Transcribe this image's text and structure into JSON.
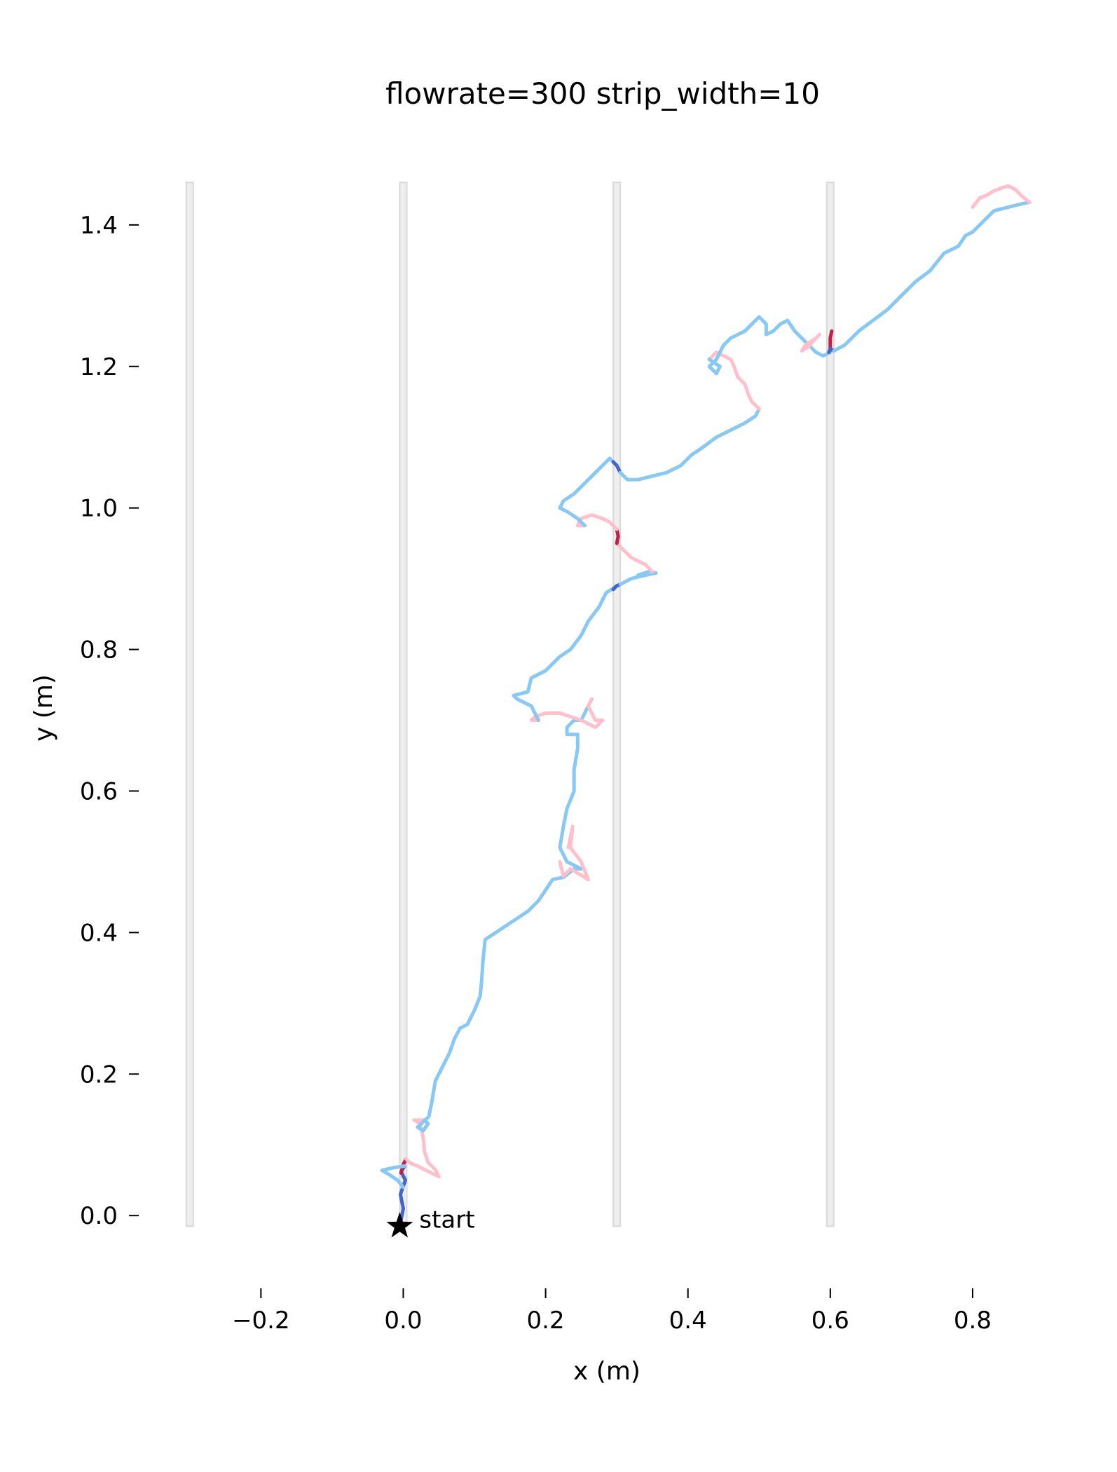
{
  "chart_data": {
    "type": "line",
    "title": "flowrate=300 strip_width=10",
    "xlabel": "x (m)",
    "ylabel": "y (m)",
    "xlim": [
      -0.35,
      0.93
    ],
    "ylim": [
      -0.085,
      1.49
    ],
    "x_ticks": [
      -0.2,
      0.0,
      0.2,
      0.4,
      0.6,
      0.8
    ],
    "x_tick_labels": [
      "−0.2",
      "0.0",
      "0.2",
      "0.4",
      "0.6",
      "0.8"
    ],
    "y_ticks": [
      0.0,
      0.2,
      0.4,
      0.6,
      0.8,
      1.0,
      1.2,
      1.4
    ],
    "y_tick_labels": [
      "0.0",
      "0.2",
      "0.4",
      "0.6",
      "0.8",
      "1.0",
      "1.2",
      "1.4"
    ],
    "grid": false,
    "strips": {
      "x": [
        -0.3,
        0.0,
        0.3,
        0.6
      ],
      "y_range": [
        -0.015,
        1.46
      ],
      "color": "#d9d9d9"
    },
    "start_marker": {
      "x": -0.005,
      "y": -0.015,
      "label": "start",
      "shape": "star",
      "color": "#000000"
    },
    "colors": {
      "off_strip": "#87c8f4",
      "exit_strip": "#ffbfcb",
      "on_strip_enter": "#c0214a",
      "on_strip_exit": "#4466c8"
    },
    "segments": [
      {
        "kind": "on_strip_exit",
        "points": [
          [
            -0.005,
            -0.015
          ],
          [
            0.0,
            0.01
          ],
          [
            -0.004,
            0.03
          ],
          [
            0.003,
            0.05
          ],
          [
            -0.003,
            0.062
          ],
          [
            0.002,
            0.07
          ]
        ]
      },
      {
        "kind": "on_strip_enter",
        "points": [
          [
            -0.003,
            0.06
          ],
          [
            0.0,
            0.072
          ],
          [
            0.004,
            0.08
          ]
        ]
      },
      {
        "kind": "off_strip",
        "points": [
          [
            0.002,
            0.07
          ],
          [
            -0.012,
            0.068
          ],
          [
            -0.03,
            0.064
          ],
          [
            -0.02,
            0.058
          ],
          [
            -0.008,
            0.05
          ],
          [
            0.0,
            0.04
          ]
        ]
      },
      {
        "kind": "exit_strip",
        "points": [
          [
            0.004,
            0.08
          ],
          [
            0.01,
            0.074
          ],
          [
            0.02,
            0.07
          ],
          [
            0.03,
            0.065
          ],
          [
            0.04,
            0.06
          ],
          [
            0.05,
            0.055
          ],
          [
            0.045,
            0.065
          ],
          [
            0.035,
            0.075
          ],
          [
            0.03,
            0.09
          ],
          [
            0.028,
            0.11
          ],
          [
            0.024,
            0.13
          ],
          [
            0.015,
            0.135
          ],
          [
            0.03,
            0.135
          ]
        ]
      },
      {
        "kind": "off_strip",
        "points": [
          [
            0.03,
            0.135
          ],
          [
            0.035,
            0.13
          ],
          [
            0.028,
            0.12
          ],
          [
            0.02,
            0.125
          ],
          [
            0.036,
            0.14
          ],
          [
            0.04,
            0.16
          ],
          [
            0.045,
            0.19
          ],
          [
            0.055,
            0.21
          ],
          [
            0.065,
            0.23
          ],
          [
            0.072,
            0.25
          ],
          [
            0.08,
            0.265
          ],
          [
            0.09,
            0.27
          ],
          [
            0.1,
            0.29
          ],
          [
            0.108,
            0.31
          ],
          [
            0.11,
            0.33
          ],
          [
            0.112,
            0.36
          ],
          [
            0.115,
            0.39
          ],
          [
            0.13,
            0.4
          ],
          [
            0.145,
            0.41
          ],
          [
            0.16,
            0.42
          ],
          [
            0.175,
            0.43
          ],
          [
            0.19,
            0.445
          ],
          [
            0.2,
            0.46
          ],
          [
            0.21,
            0.475
          ],
          [
            0.225,
            0.478
          ],
          [
            0.24,
            0.49
          ],
          [
            0.25,
            0.49
          ],
          [
            0.23,
            0.5
          ],
          [
            0.22,
            0.52
          ],
          [
            0.225,
            0.55
          ],
          [
            0.23,
            0.575
          ],
          [
            0.24,
            0.6
          ],
          [
            0.24,
            0.63
          ],
          [
            0.245,
            0.66
          ],
          [
            0.245,
            0.68
          ],
          [
            0.23,
            0.68
          ],
          [
            0.23,
            0.69
          ],
          [
            0.24,
            0.7
          ],
          [
            0.25,
            0.7
          ],
          [
            0.26,
            0.72
          ],
          [
            0.265,
            0.73
          ]
        ]
      },
      {
        "kind": "exit_strip",
        "points": [
          [
            0.22,
            0.5
          ],
          [
            0.225,
            0.48
          ],
          [
            0.235,
            0.49
          ],
          [
            0.26,
            0.475
          ],
          [
            0.25,
            0.5
          ],
          [
            0.235,
            0.52
          ],
          [
            0.238,
            0.55
          ],
          [
            0.232,
            0.52
          ]
        ]
      },
      {
        "kind": "exit_strip",
        "points": [
          [
            0.265,
            0.73
          ],
          [
            0.26,
            0.72
          ],
          [
            0.27,
            0.7
          ],
          [
            0.28,
            0.7
          ],
          [
            0.27,
            0.69
          ],
          [
            0.25,
            0.7
          ],
          [
            0.22,
            0.71
          ],
          [
            0.2,
            0.71
          ],
          [
            0.185,
            0.705
          ],
          [
            0.18,
            0.7
          ],
          [
            0.19,
            0.7
          ]
        ]
      },
      {
        "kind": "off_strip",
        "points": [
          [
            0.19,
            0.7
          ],
          [
            0.18,
            0.72
          ],
          [
            0.16,
            0.73
          ],
          [
            0.155,
            0.735
          ],
          [
            0.175,
            0.74
          ],
          [
            0.18,
            0.76
          ],
          [
            0.2,
            0.77
          ],
          [
            0.22,
            0.79
          ],
          [
            0.235,
            0.8
          ],
          [
            0.25,
            0.82
          ],
          [
            0.26,
            0.84
          ],
          [
            0.275,
            0.86
          ],
          [
            0.285,
            0.88
          ],
          [
            0.3,
            0.89
          ]
        ]
      },
      {
        "kind": "on_strip_exit",
        "points": [
          [
            0.295,
            0.885
          ],
          [
            0.3,
            0.89
          ],
          [
            0.305,
            0.892
          ]
        ]
      },
      {
        "kind": "off_strip",
        "points": [
          [
            0.305,
            0.892
          ],
          [
            0.32,
            0.9
          ],
          [
            0.34,
            0.905
          ],
          [
            0.355,
            0.908
          ],
          [
            0.345,
            0.91
          ],
          [
            0.33,
            0.905
          ]
        ]
      },
      {
        "kind": "exit_strip",
        "points": [
          [
            0.35,
            0.91
          ],
          [
            0.34,
            0.92
          ],
          [
            0.33,
            0.925
          ],
          [
            0.32,
            0.93
          ],
          [
            0.31,
            0.94
          ],
          [
            0.3,
            0.95
          ]
        ]
      },
      {
        "kind": "on_strip_enter",
        "points": [
          [
            0.3,
            0.95
          ],
          [
            0.302,
            0.96
          ],
          [
            0.3,
            0.97
          ]
        ]
      },
      {
        "kind": "exit_strip",
        "points": [
          [
            0.3,
            0.97
          ],
          [
            0.29,
            0.98
          ],
          [
            0.28,
            0.985
          ],
          [
            0.265,
            0.99
          ],
          [
            0.25,
            0.985
          ],
          [
            0.245,
            0.975
          ],
          [
            0.255,
            0.975
          ]
        ]
      },
      {
        "kind": "off_strip",
        "points": [
          [
            0.255,
            0.975
          ],
          [
            0.245,
            0.985
          ],
          [
            0.23,
            0.995
          ],
          [
            0.22,
            1.0
          ],
          [
            0.225,
            1.01
          ],
          [
            0.24,
            1.02
          ],
          [
            0.25,
            1.03
          ],
          [
            0.26,
            1.04
          ],
          [
            0.27,
            1.05
          ],
          [
            0.28,
            1.06
          ],
          [
            0.29,
            1.07
          ],
          [
            0.295,
            1.065
          ]
        ]
      },
      {
        "kind": "on_strip_exit",
        "points": [
          [
            0.295,
            1.065
          ],
          [
            0.3,
            1.06
          ],
          [
            0.305,
            1.05
          ]
        ]
      },
      {
        "kind": "off_strip",
        "points": [
          [
            0.305,
            1.05
          ],
          [
            0.315,
            1.04
          ],
          [
            0.33,
            1.04
          ],
          [
            0.35,
            1.045
          ],
          [
            0.37,
            1.05
          ],
          [
            0.39,
            1.06
          ],
          [
            0.405,
            1.075
          ],
          [
            0.42,
            1.085
          ],
          [
            0.44,
            1.1
          ],
          [
            0.46,
            1.11
          ],
          [
            0.48,
            1.12
          ],
          [
            0.495,
            1.13
          ],
          [
            0.5,
            1.14
          ]
        ]
      },
      {
        "kind": "exit_strip",
        "points": [
          [
            0.5,
            1.14
          ],
          [
            0.49,
            1.15
          ],
          [
            0.485,
            1.16
          ],
          [
            0.48,
            1.175
          ],
          [
            0.47,
            1.185
          ],
          [
            0.465,
            1.2
          ],
          [
            0.46,
            1.21
          ],
          [
            0.45,
            1.215
          ],
          [
            0.44,
            1.22
          ],
          [
            0.43,
            1.21
          ]
        ]
      },
      {
        "kind": "off_strip",
        "points": [
          [
            0.43,
            1.21
          ],
          [
            0.445,
            1.2
          ],
          [
            0.44,
            1.19
          ],
          [
            0.43,
            1.2
          ],
          [
            0.44,
            1.21
          ],
          [
            0.445,
            1.22
          ],
          [
            0.45,
            1.23
          ],
          [
            0.46,
            1.24
          ],
          [
            0.48,
            1.25
          ],
          [
            0.49,
            1.26
          ],
          [
            0.5,
            1.27
          ],
          [
            0.51,
            1.26
          ],
          [
            0.51,
            1.245
          ],
          [
            0.52,
            1.25
          ],
          [
            0.53,
            1.26
          ],
          [
            0.54,
            1.265
          ],
          [
            0.55,
            1.25
          ],
          [
            0.56,
            1.24
          ],
          [
            0.57,
            1.23
          ],
          [
            0.58,
            1.22
          ],
          [
            0.59,
            1.215
          ],
          [
            0.6,
            1.22
          ]
        ]
      },
      {
        "kind": "exit_strip",
        "points": [
          [
            0.585,
            1.245
          ],
          [
            0.575,
            1.235
          ],
          [
            0.57,
            1.228
          ],
          [
            0.56,
            1.222
          ],
          [
            0.565,
            1.23
          ],
          [
            0.58,
            1.24
          ]
        ]
      },
      {
        "kind": "on_strip_enter",
        "points": [
          [
            0.6,
            1.225
          ],
          [
            0.6,
            1.24
          ],
          [
            0.602,
            1.25
          ]
        ]
      },
      {
        "kind": "on_strip_exit",
        "points": [
          [
            0.598,
            1.22
          ],
          [
            0.6,
            1.225
          ],
          [
            0.605,
            1.222
          ]
        ]
      },
      {
        "kind": "off_strip",
        "points": [
          [
            0.605,
            1.222
          ],
          [
            0.62,
            1.23
          ],
          [
            0.64,
            1.25
          ],
          [
            0.66,
            1.265
          ],
          [
            0.68,
            1.28
          ],
          [
            0.7,
            1.3
          ],
          [
            0.72,
            1.32
          ],
          [
            0.74,
            1.335
          ],
          [
            0.76,
            1.36
          ],
          [
            0.78,
            1.37
          ],
          [
            0.79,
            1.385
          ],
          [
            0.8,
            1.39
          ],
          [
            0.81,
            1.4
          ],
          [
            0.82,
            1.41
          ],
          [
            0.83,
            1.42
          ],
          [
            0.85,
            1.425
          ],
          [
            0.87,
            1.43
          ],
          [
            0.88,
            1.432
          ]
        ]
      },
      {
        "kind": "exit_strip",
        "points": [
          [
            0.88,
            1.432
          ],
          [
            0.87,
            1.44
          ],
          [
            0.86,
            1.45
          ],
          [
            0.85,
            1.455
          ],
          [
            0.84,
            1.452
          ],
          [
            0.83,
            1.448
          ],
          [
            0.82,
            1.442
          ],
          [
            0.81,
            1.438
          ],
          [
            0.8,
            1.425
          ]
        ]
      }
    ]
  }
}
